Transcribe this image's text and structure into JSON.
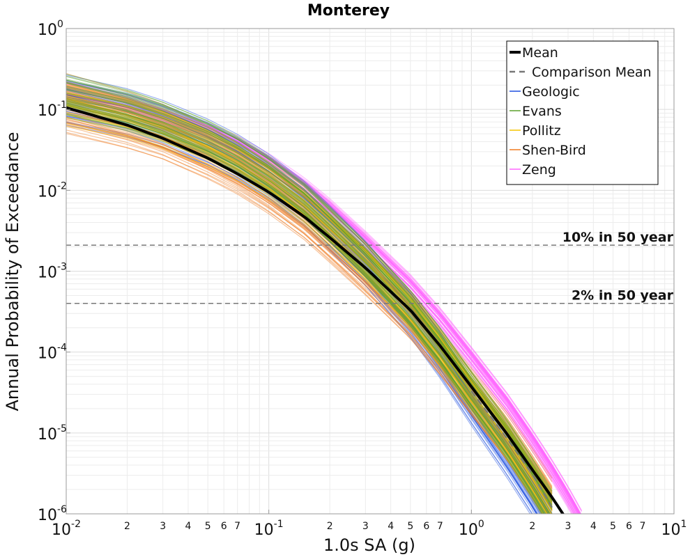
{
  "chart_data": {
    "type": "line",
    "title": "Monterey",
    "xlabel": "1.0s SA (g)",
    "ylabel": "Annual Probability of Exceedance",
    "xscale": "log",
    "yscale": "log",
    "xlim": [
      0.01,
      10
    ],
    "ylim": [
      1e-06,
      1
    ],
    "grid": true,
    "legend_position": "top-right",
    "x_major_ticks": [
      {
        "value": 0.01,
        "base": "10",
        "exp": "-2"
      },
      {
        "value": 0.1,
        "base": "10",
        "exp": "-1"
      },
      {
        "value": 1,
        "base": "10",
        "exp": "0"
      },
      {
        "value": 10,
        "base": "10",
        "exp": "1"
      }
    ],
    "y_major_ticks": [
      {
        "value": 1,
        "base": "10",
        "exp": "0"
      },
      {
        "value": 0.1,
        "base": "10",
        "exp": "-1"
      },
      {
        "value": 0.01,
        "base": "10",
        "exp": "-2"
      },
      {
        "value": 0.001,
        "base": "10",
        "exp": "-3"
      },
      {
        "value": 0.0001,
        "base": "10",
        "exp": "-4"
      },
      {
        "value": 1e-05,
        "base": "10",
        "exp": "-5"
      },
      {
        "value": 1e-06,
        "base": "10",
        "exp": "-6"
      }
    ],
    "x_minor_tick_labels": [
      "2",
      "3",
      "4",
      "5",
      "6",
      "7"
    ],
    "reference_lines": [
      {
        "label": "10% in 50 year",
        "y": 0.0021,
        "color": "#777777",
        "style": "dashed"
      },
      {
        "label": "2% in 50 year",
        "y": 0.0004,
        "color": "#777777",
        "style": "dashed"
      }
    ],
    "series": [
      {
        "name": "Mean",
        "color": "#000000",
        "style": "solid",
        "x": [
          0.01,
          0.02,
          0.03,
          0.05,
          0.07,
          0.1,
          0.15,
          0.2,
          0.3,
          0.5,
          0.7,
          1.0,
          1.5,
          2.0,
          2.5,
          3.0
        ],
        "y": [
          0.105,
          0.064,
          0.044,
          0.025,
          0.016,
          0.0095,
          0.0047,
          0.0026,
          0.0011,
          0.00033,
          0.00012,
          3.73e-05,
          9.7e-06,
          3.5e-06,
          1.6e-06,
          8e-07
        ]
      },
      {
        "name": "Comparison Mean",
        "color": "#777777",
        "style": "dashed",
        "x": [
          1.0,
          1.5,
          2.0,
          2.5
        ],
        "y": [
          3.3e-05,
          8.5e-06,
          3.1e-06,
          1.2e-06
        ]
      },
      {
        "name": "Geologic",
        "color": "#1f4fe0",
        "style": "solid",
        "ensemble": true,
        "x": [
          0.01,
          0.02,
          0.03,
          0.05,
          0.07,
          0.1,
          0.15,
          0.2,
          0.3,
          0.5,
          0.7,
          1.0,
          1.5,
          2.0,
          2.5
        ],
        "y": [
          0.14,
          0.095,
          0.068,
          0.04,
          0.026,
          0.0148,
          0.0068,
          0.0034,
          0.00125,
          0.00029,
          9.2e-05,
          2.4e-05,
          5.5e-06,
          1.8e-06,
          7e-07
        ]
      },
      {
        "name": "Evans",
        "color": "#5aa02c",
        "style": "solid",
        "ensemble": true,
        "x": [
          0.01,
          0.02,
          0.03,
          0.05,
          0.07,
          0.1,
          0.15,
          0.2,
          0.3,
          0.5,
          0.7,
          1.0,
          1.5,
          2.0,
          2.5
        ],
        "y": [
          0.15,
          0.1,
          0.072,
          0.043,
          0.028,
          0.016,
          0.0075,
          0.0038,
          0.0014,
          0.00035,
          0.00012,
          3.4e-05,
          8.5e-06,
          2.8e-06,
          1.1e-06
        ]
      },
      {
        "name": "Pollitz",
        "color": "#f5c400",
        "style": "solid",
        "ensemble": true,
        "x": [
          0.01,
          0.02,
          0.03,
          0.05,
          0.07,
          0.1,
          0.15,
          0.2,
          0.3,
          0.5,
          0.7,
          1.0,
          1.5,
          2.0,
          2.5
        ],
        "y": [
          0.13,
          0.088,
          0.063,
          0.037,
          0.024,
          0.0138,
          0.0066,
          0.0034,
          0.0013,
          0.00033,
          0.00011,
          3.2e-05,
          8.2e-06,
          2.7e-06,
          1.1e-06
        ]
      },
      {
        "name": "Shen-Bird",
        "color": "#f07a20",
        "style": "solid",
        "ensemble": true,
        "x": [
          0.01,
          0.02,
          0.03,
          0.05,
          0.07,
          0.1,
          0.15,
          0.2,
          0.3,
          0.5,
          0.7,
          1.0,
          1.5,
          2.0,
          2.5
        ],
        "y": [
          0.11,
          0.07,
          0.05,
          0.028,
          0.018,
          0.0102,
          0.0048,
          0.0025,
          0.00098,
          0.00028,
          0.0001,
          3.2e-05,
          8.9e-06,
          3.1e-06,
          1.3e-06
        ]
      },
      {
        "name": "Zeng",
        "color": "#ff66ff",
        "style": "solid",
        "ensemble": true,
        "x": [
          0.01,
          0.02,
          0.03,
          0.05,
          0.07,
          0.1,
          0.15,
          0.2,
          0.3,
          0.5,
          0.7,
          1.0,
          1.5,
          2.0,
          2.5,
          3.0,
          3.5
        ],
        "y": [
          0.16,
          0.11,
          0.08,
          0.05,
          0.035,
          0.021,
          0.0105,
          0.0058,
          0.0023,
          0.00067,
          0.00026,
          8.5e-05,
          2.3e-05,
          8.1e-06,
          3.4e-06,
          1.6e-06,
          8e-07
        ]
      }
    ]
  }
}
